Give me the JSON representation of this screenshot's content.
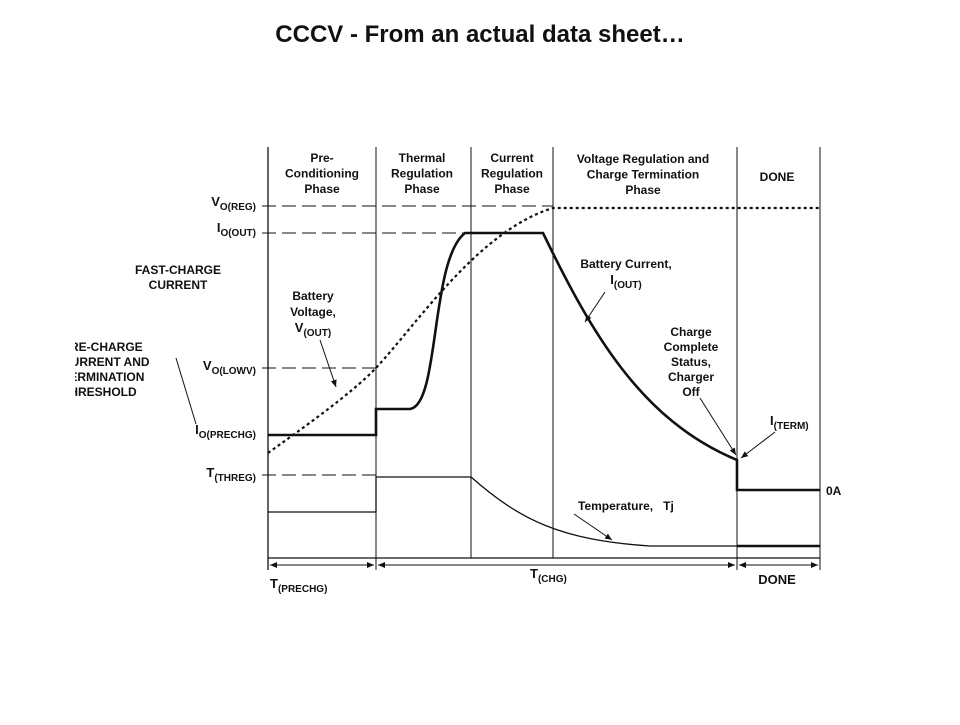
{
  "title": "CCCV - From an actual data sheet…",
  "phases": [
    {
      "lines": [
        "Pre-",
        "Conditioning",
        "Phase"
      ]
    },
    {
      "lines": [
        "Thermal",
        "Regulation",
        "Phase"
      ]
    },
    {
      "lines": [
        "Current",
        "Regulation",
        "Phase"
      ]
    },
    {
      "lines": [
        "Voltage Regulation and",
        "Charge Termination",
        "Phase"
      ]
    },
    {
      "lines": [
        "DONE"
      ]
    }
  ],
  "levels": [
    {
      "main": "V",
      "sub": "O(REG)"
    },
    {
      "main": "I",
      "sub": "O(OUT)"
    },
    {
      "main": "V",
      "sub": "O(LOWV)"
    },
    {
      "main": "I",
      "sub": "O(PRECHG)"
    },
    {
      "main": "T",
      "sub": "(THREG)"
    }
  ],
  "annotations": {
    "fast_charge": [
      "FAST-CHARGE",
      "CURRENT"
    ],
    "pre_charge": [
      "PRE-CHARGE",
      "CURRENT AND",
      "TERMINATION",
      "THRESHOLD"
    ],
    "battery_voltage": {
      "lines": [
        "Battery",
        "Voltage,"
      ],
      "main": "V",
      "sub": "(OUT)"
    },
    "battery_current": {
      "lines": [
        "Battery Current,"
      ],
      "main": "I",
      "sub": "(OUT)"
    },
    "charge_complete": [
      "Charge",
      "Complete",
      "Status,",
      "Charger",
      "Off"
    ],
    "term": {
      "main": "I",
      "sub": "(TERM)"
    },
    "zero": "0A",
    "temperature": "Temperature,   Tj"
  },
  "durations": [
    {
      "main": "T",
      "sub": "(PRECHG)"
    },
    {
      "main": "T",
      "sub": "(CHG)"
    },
    {
      "main": "DONE"
    }
  ]
}
